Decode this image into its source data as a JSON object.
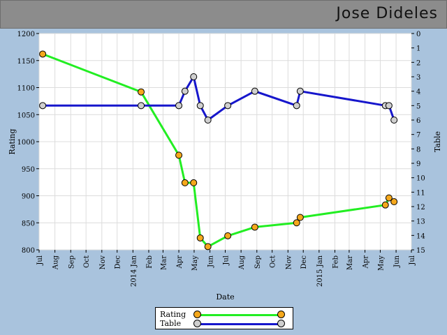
{
  "header": {
    "player_name": "Jose Dideles"
  },
  "chart_data": {
    "type": "line",
    "xlabel": "Date",
    "ylabel_left": "Rating",
    "ylabel_right": "Table",
    "ylim_left": [
      800,
      1200
    ],
    "yticks_left": [
      800,
      850,
      900,
      950,
      1000,
      1050,
      1100,
      1150,
      1200
    ],
    "ylim_right": [
      15,
      0
    ],
    "yticks_right": [
      0,
      1,
      2,
      3,
      4,
      5,
      6,
      7,
      8,
      9,
      10,
      11,
      12,
      13,
      14,
      15
    ],
    "xlim": [
      "2013-07-01",
      "2015-07-01"
    ],
    "xticks": [
      {
        "date": "2013-07-01",
        "label": "Jul"
      },
      {
        "date": "2013-08-01",
        "label": "Aug"
      },
      {
        "date": "2013-09-01",
        "label": "Sep"
      },
      {
        "date": "2013-10-01",
        "label": "Oct"
      },
      {
        "date": "2013-11-01",
        "label": "Nov"
      },
      {
        "date": "2013-12-01",
        "label": "Dec"
      },
      {
        "date": "2014-01-01",
        "label": "2014 Jan"
      },
      {
        "date": "2014-02-01",
        "label": "Feb"
      },
      {
        "date": "2014-03-01",
        "label": "Mar"
      },
      {
        "date": "2014-04-01",
        "label": "Apr"
      },
      {
        "date": "2014-05-01",
        "label": "May"
      },
      {
        "date": "2014-06-01",
        "label": "Jun"
      },
      {
        "date": "2014-07-01",
        "label": "Jul"
      },
      {
        "date": "2014-08-01",
        "label": "Aug"
      },
      {
        "date": "2014-09-01",
        "label": "Sep"
      },
      {
        "date": "2014-10-01",
        "label": "Oct"
      },
      {
        "date": "2014-11-01",
        "label": "Nov"
      },
      {
        "date": "2014-12-01",
        "label": "Dec"
      },
      {
        "date": "2015-01-01",
        "label": "2015 Jan"
      },
      {
        "date": "2015-02-01",
        "label": "Feb"
      },
      {
        "date": "2015-03-01",
        "label": "Mar"
      },
      {
        "date": "2015-04-01",
        "label": "Apr"
      },
      {
        "date": "2015-05-01",
        "label": "May"
      },
      {
        "date": "2015-06-01",
        "label": "Jun"
      },
      {
        "date": "2015-07-01",
        "label": "Jul"
      }
    ],
    "grid": true,
    "legend_position": "bottom-center",
    "series": [
      {
        "name": "Rating",
        "axis": "left",
        "line_color": "#22ee22",
        "marker_color": "#f5a81c",
        "points": [
          {
            "x": "2013-07-08",
            "y": 1162
          },
          {
            "x": "2014-01-17",
            "y": 1092
          },
          {
            "x": "2014-04-01",
            "y": 975
          },
          {
            "x": "2014-04-13",
            "y": 924
          },
          {
            "x": "2014-04-30",
            "y": 924
          },
          {
            "x": "2014-05-13",
            "y": 822
          },
          {
            "x": "2014-05-28",
            "y": 806
          },
          {
            "x": "2014-07-06",
            "y": 826
          },
          {
            "x": "2014-08-28",
            "y": 842
          },
          {
            "x": "2014-11-18",
            "y": 850
          },
          {
            "x": "2014-11-25",
            "y": 860
          },
          {
            "x": "2015-05-11",
            "y": 883
          },
          {
            "x": "2015-05-18",
            "y": 896
          },
          {
            "x": "2015-05-28",
            "y": 889
          }
        ]
      },
      {
        "name": "Table",
        "axis": "right",
        "line_color": "#1616cc",
        "marker_color": "#cfcfcf",
        "points": [
          {
            "x": "2013-07-08",
            "y": 5
          },
          {
            "x": "2014-01-17",
            "y": 5
          },
          {
            "x": "2014-04-01",
            "y": 5
          },
          {
            "x": "2014-04-13",
            "y": 4
          },
          {
            "x": "2014-04-30",
            "y": 3
          },
          {
            "x": "2014-05-13",
            "y": 5
          },
          {
            "x": "2014-05-28",
            "y": 6
          },
          {
            "x": "2014-07-06",
            "y": 5
          },
          {
            "x": "2014-08-28",
            "y": 4
          },
          {
            "x": "2014-11-18",
            "y": 5
          },
          {
            "x": "2014-11-25",
            "y": 4
          },
          {
            "x": "2015-05-11",
            "y": 5
          },
          {
            "x": "2015-05-18",
            "y": 5
          },
          {
            "x": "2015-05-28",
            "y": 6
          }
        ]
      }
    ]
  },
  "legend": {
    "items": [
      {
        "label": "Rating",
        "line_color": "#22ee22",
        "marker_color": "#f5a81c"
      },
      {
        "label": "Table",
        "line_color": "#1616cc",
        "marker_color": "#cfcfcf"
      }
    ]
  }
}
